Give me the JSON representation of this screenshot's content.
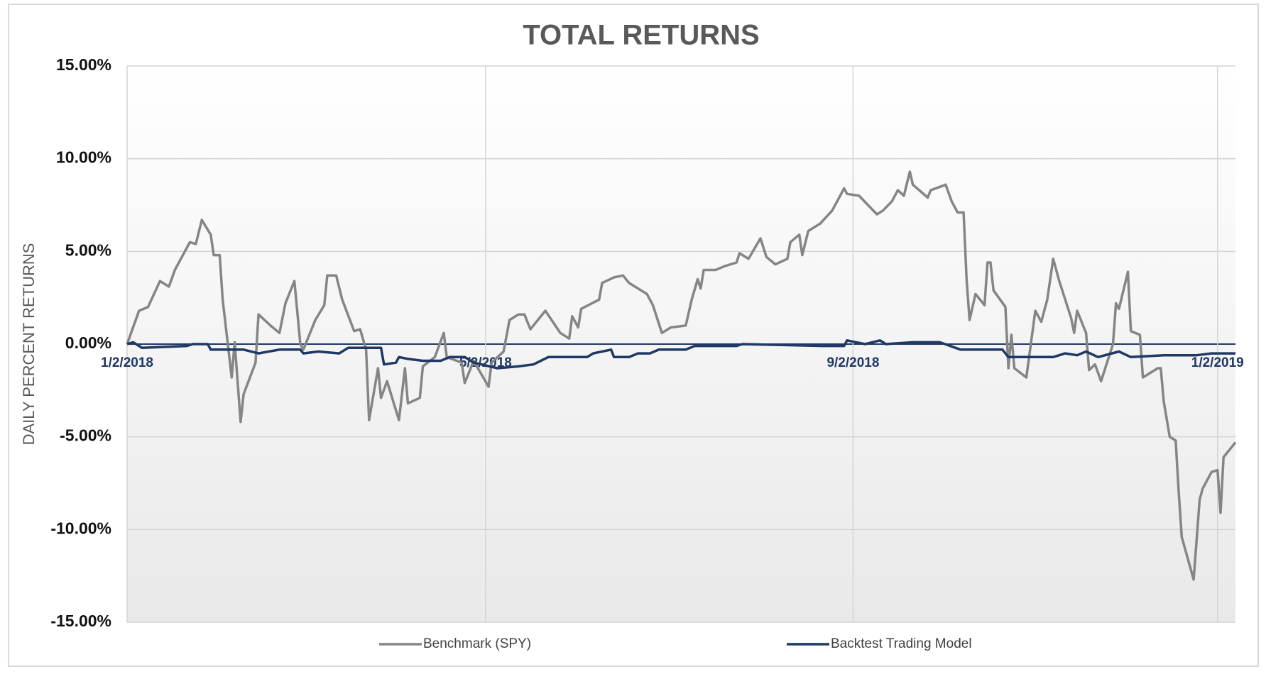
{
  "chart_data": {
    "type": "line",
    "title": "TOTAL RETURNS",
    "y_label": "DAILY PERCENT RETURNS",
    "xlim": [
      "2018-01-02",
      "2019-01-08"
    ],
    "xticks": [
      {
        "value": "2018-01-02",
        "label": "1/2/2018"
      },
      {
        "value": "2018-05-02",
        "label": "5/2/2018"
      },
      {
        "value": "2018-09-02",
        "label": "9/2/2018"
      },
      {
        "value": "2019-01-02",
        "label": "1/2/2019"
      }
    ],
    "ylim": [
      -15,
      15
    ],
    "yticks": [
      {
        "value": 15,
        "label": "15.00%"
      },
      {
        "value": 10,
        "label": "10.00%"
      },
      {
        "value": 5,
        "label": "5.00%"
      },
      {
        "value": 0,
        "label": "0.00%"
      },
      {
        "value": -5,
        "label": "-5.00%"
      },
      {
        "value": -10,
        "label": "-10.00%"
      },
      {
        "value": -15,
        "label": "-15.00%"
      }
    ],
    "grid": true,
    "legend": "bottom",
    "series": [
      {
        "name": "Benchmark (SPY)",
        "color": "#858585",
        "x": [
          "2018-01-02",
          "2018-01-06",
          "2018-01-09",
          "2018-01-13",
          "2018-01-16",
          "2018-01-18",
          "2018-01-23",
          "2018-01-25",
          "2018-01-27",
          "2018-01-30",
          "2018-01-31",
          "2018-02-02",
          "2018-02-03",
          "2018-02-06",
          "2018-02-07",
          "2018-02-09",
          "2018-02-10",
          "2018-02-14",
          "2018-02-15",
          "2018-02-19",
          "2018-02-22",
          "2018-02-24",
          "2018-02-27",
          "2018-03-01",
          "2018-03-02",
          "2018-03-06",
          "2018-03-09",
          "2018-03-10",
          "2018-03-13",
          "2018-03-15",
          "2018-03-19",
          "2018-03-21",
          "2018-03-23",
          "2018-03-24",
          "2018-03-27",
          "2018-03-28",
          "2018-03-30",
          "2018-04-03",
          "2018-04-05",
          "2018-04-06",
          "2018-04-10",
          "2018-04-11",
          "2018-04-15",
          "2018-04-18",
          "2018-04-19",
          "2018-04-24",
          "2018-04-25",
          "2018-04-28",
          "2018-05-03",
          "2018-05-04",
          "2018-05-08",
          "2018-05-10",
          "2018-05-13",
          "2018-05-15",
          "2018-05-17",
          "2018-05-19",
          "2018-05-22",
          "2018-05-27",
          "2018-05-30",
          "2018-05-31",
          "2018-06-02",
          "2018-06-03",
          "2018-06-09",
          "2018-06-10",
          "2018-06-14",
          "2018-06-17",
          "2018-06-19",
          "2018-06-25",
          "2018-06-27",
          "2018-06-30",
          "2018-07-03",
          "2018-07-08",
          "2018-07-10",
          "2018-07-12",
          "2018-07-13",
          "2018-07-14",
          "2018-07-18",
          "2018-07-21",
          "2018-07-25",
          "2018-07-26",
          "2018-07-29",
          "2018-08-02",
          "2018-08-04",
          "2018-08-07",
          "2018-08-11",
          "2018-08-12",
          "2018-08-15",
          "2018-08-16",
          "2018-08-18",
          "2018-08-22",
          "2018-08-26",
          "2018-08-30",
          "2018-08-31",
          "2018-09-04",
          "2018-09-10",
          "2018-09-12",
          "2018-09-15",
          "2018-09-17",
          "2018-09-19",
          "2018-09-21",
          "2018-09-22",
          "2018-09-27",
          "2018-09-28",
          "2018-10-03",
          "2018-10-05",
          "2018-10-07",
          "2018-10-09",
          "2018-10-10",
          "2018-10-11",
          "2018-10-13",
          "2018-10-16",
          "2018-10-17",
          "2018-10-18",
          "2018-10-19",
          "2018-10-23",
          "2018-10-24",
          "2018-10-25",
          "2018-10-26",
          "2018-10-30",
          "2018-11-02",
          "2018-11-04",
          "2018-11-06",
          "2018-11-08",
          "2018-11-10",
          "2018-11-14",
          "2018-11-15",
          "2018-11-16",
          "2018-11-19",
          "2018-11-20",
          "2018-11-22",
          "2018-11-24",
          "2018-11-28",
          "2018-11-29",
          "2018-11-30",
          "2018-12-03",
          "2018-12-04",
          "2018-12-07",
          "2018-12-08",
          "2018-12-13",
          "2018-12-14",
          "2018-12-15",
          "2018-12-17",
          "2018-12-19",
          "2018-12-20",
          "2018-12-21",
          "2018-12-25",
          "2018-12-27",
          "2018-12-28",
          "2018-12-31",
          "2019-01-02",
          "2019-01-03",
          "2019-01-04",
          "2019-01-08"
        ],
        "values": [
          0.0,
          1.8,
          2.0,
          3.4,
          3.1,
          4.0,
          5.5,
          5.4,
          6.7,
          5.9,
          4.8,
          4.8,
          2.4,
          -1.8,
          0.1,
          -4.2,
          -2.7,
          -1.0,
          1.6,
          1.0,
          0.6,
          2.2,
          3.4,
          0.0,
          -0.3,
          1.3,
          2.1,
          3.7,
          3.7,
          2.4,
          0.7,
          0.8,
          -0.3,
          -4.1,
          -1.3,
          -2.9,
          -2.0,
          -4.1,
          -1.3,
          -3.2,
          -2.9,
          -1.2,
          -0.7,
          0.6,
          -0.7,
          -1.0,
          -2.1,
          -0.9,
          -2.3,
          -1.0,
          -0.4,
          1.3,
          1.6,
          1.6,
          0.8,
          1.2,
          1.8,
          0.6,
          0.3,
          1.5,
          0.9,
          1.9,
          2.4,
          3.3,
          3.6,
          3.7,
          3.3,
          2.7,
          2.1,
          0.6,
          0.9,
          1.0,
          2.4,
          3.5,
          3.0,
          4.0,
          4.0,
          4.2,
          4.4,
          4.9,
          4.6,
          5.7,
          4.7,
          4.3,
          4.6,
          5.5,
          5.9,
          4.8,
          6.1,
          6.5,
          7.2,
          8.4,
          8.1,
          8.0,
          7.0,
          7.2,
          7.7,
          8.3,
          8.0,
          9.3,
          8.6,
          7.9,
          8.3,
          8.6,
          7.7,
          7.1,
          7.1,
          3.5,
          1.3,
          2.7,
          2.1,
          4.4,
          4.4,
          2.9,
          2.0,
          -1.3,
          0.5,
          -1.3,
          -1.8,
          1.8,
          1.2,
          2.4,
          4.6,
          3.4,
          1.4,
          0.6,
          1.8,
          0.6,
          -1.4,
          -1.1,
          -2.0,
          0.0,
          2.2,
          1.9,
          3.9,
          0.7,
          0.5,
          -1.8,
          -1.3,
          -1.3,
          -3.1,
          -5.0,
          -5.2,
          -8.0,
          -10.4,
          -12.7,
          -8.4,
          -7.8,
          -6.9,
          -6.8,
          -9.1,
          -6.1,
          -5.3
        ]
      },
      {
        "name": "Backtest Trading Model",
        "color": "#1f3864",
        "x": [
          "2018-01-02",
          "2018-01-04",
          "2018-01-07",
          "2018-01-22",
          "2018-01-24",
          "2018-01-29",
          "2018-01-30",
          "2018-02-10",
          "2018-02-15",
          "2018-02-22",
          "2018-03-01",
          "2018-03-02",
          "2018-03-07",
          "2018-03-14",
          "2018-03-17",
          "2018-03-28",
          "2018-03-29",
          "2018-04-02",
          "2018-04-03",
          "2018-04-06",
          "2018-04-11",
          "2018-04-17",
          "2018-04-20",
          "2018-04-25",
          "2018-04-28",
          "2018-05-06",
          "2018-05-13",
          "2018-05-18",
          "2018-05-23",
          "2018-06-05",
          "2018-06-07",
          "2018-06-13",
          "2018-06-14",
          "2018-06-19",
          "2018-06-22",
          "2018-06-26",
          "2018-06-29",
          "2018-07-08",
          "2018-07-11",
          "2018-07-25",
          "2018-07-27",
          "2018-08-23",
          "2018-08-30",
          "2018-08-31",
          "2018-09-06",
          "2018-09-11",
          "2018-09-13",
          "2018-09-22",
          "2018-10-01",
          "2018-10-08",
          "2018-10-22",
          "2018-10-24",
          "2018-11-08",
          "2018-11-12",
          "2018-11-16",
          "2018-11-19",
          "2018-11-23",
          "2018-11-30",
          "2018-12-04",
          "2018-12-15",
          "2018-12-26",
          "2018-12-31",
          "2019-01-08"
        ],
        "values": [
          0.0,
          0.1,
          -0.2,
          -0.1,
          0.0,
          0.0,
          -0.3,
          -0.3,
          -0.5,
          -0.3,
          -0.3,
          -0.5,
          -0.4,
          -0.5,
          -0.2,
          -0.2,
          -1.1,
          -1.0,
          -0.7,
          -0.8,
          -0.9,
          -0.9,
          -0.7,
          -0.7,
          -1.0,
          -1.3,
          -1.2,
          -1.1,
          -0.7,
          -0.7,
          -0.5,
          -0.3,
          -0.7,
          -0.7,
          -0.5,
          -0.5,
          -0.3,
          -0.3,
          -0.1,
          -0.1,
          0.0,
          -0.1,
          -0.1,
          0.2,
          0.0,
          0.2,
          0.0,
          0.1,
          0.1,
          -0.3,
          -0.3,
          -0.7,
          -0.7,
          -0.5,
          -0.6,
          -0.4,
          -0.7,
          -0.4,
          -0.7,
          -0.6,
          -0.6,
          -0.5,
          -0.5
        ]
      }
    ]
  }
}
